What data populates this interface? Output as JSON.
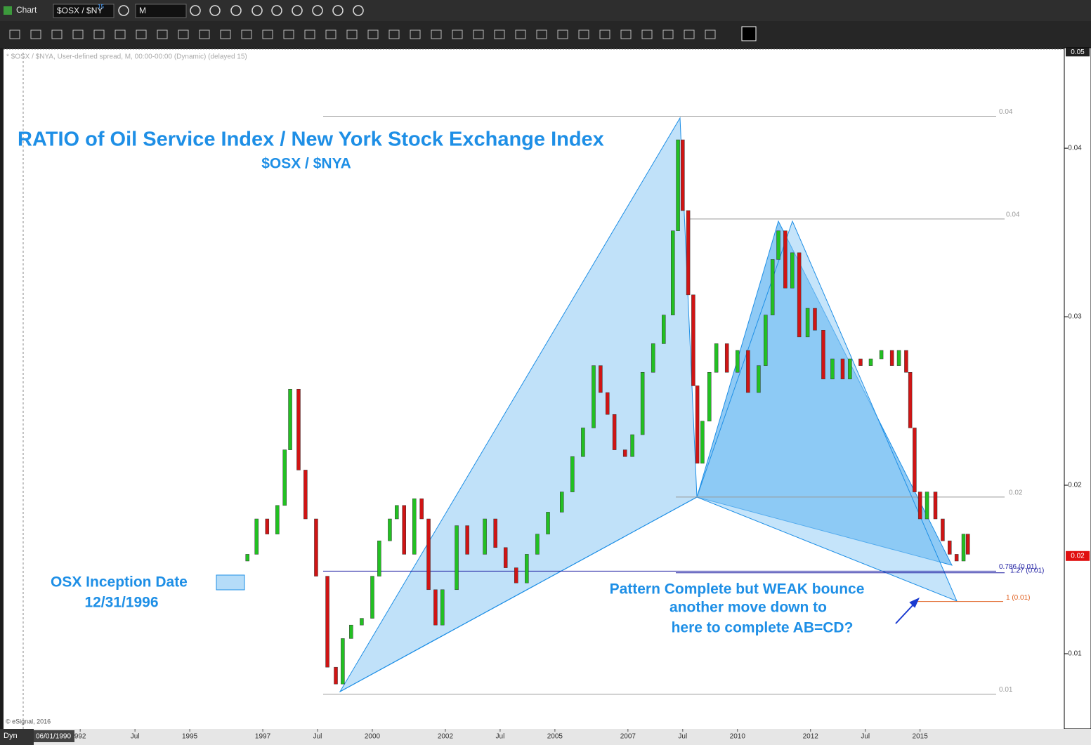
{
  "ui": {
    "window_title": "Chart",
    "symbol": "$OSX / $NY",
    "symbol_badge": "15",
    "interval": "M",
    "study_header": "* $OSX / $NYA, User-defined spread, M, 00:00-00:00 (Dynamic) (delayed 15)",
    "copyright": "© eSignal, 2016",
    "mode": "Dyn",
    "start_date": "06/01/1990"
  },
  "chart_data": {
    "type": "candlestick",
    "title": "RATIO of Oil Service Index / New York Stock Exchange Index",
    "subtitle": "$OSX / $NYA",
    "annotations": [
      "OSX Inception Date",
      "12/31/1996",
      "Pattern Complete but WEAK bounce",
      "another move down to",
      "here to complete AB=CD?"
    ],
    "x": [
      1996.58,
      1996.83,
      1997.12,
      1997.4,
      1997.6,
      1997.75,
      1997.98,
      1998.17,
      1998.46,
      1998.77,
      1999.0,
      1999.19,
      1999.42,
      1999.71,
      2000.0,
      2000.19,
      2000.48,
      2000.67,
      2000.87,
      2001.15,
      2001.35,
      2001.54,
      2001.73,
      2001.92,
      2002.31,
      2002.6,
      2003.08,
      2003.37,
      2003.65,
      2003.94,
      2004.23,
      2004.52,
      2004.81,
      2005.19,
      2005.48,
      2005.77,
      2006.06,
      2006.25,
      2006.44,
      2006.63,
      2006.92,
      2007.12,
      2007.4,
      2007.69,
      2007.98,
      2008.23,
      2008.37,
      2008.5,
      2008.65,
      2008.79,
      2008.9,
      2009.04,
      2009.23,
      2009.42,
      2009.71,
      2010.0,
      2010.29,
      2010.58,
      2010.77,
      2010.96,
      2011.12,
      2011.31,
      2011.5,
      2011.69,
      2011.92,
      2012.12,
      2012.35,
      2012.6,
      2012.88,
      2013.08,
      2013.37,
      2013.65,
      2013.94,
      2014.23,
      2014.42,
      2014.62,
      2014.73,
      2014.85,
      2015.0,
      2015.19,
      2015.42,
      2015.62,
      2015.81,
      2016.0,
      2016.19,
      2016.31
    ],
    "open": [
      0.0155,
      0.0159,
      0.018,
      0.0171,
      0.0188,
      0.0221,
      0.0257,
      0.0209,
      0.018,
      0.0146,
      0.0092,
      0.0082,
      0.0109,
      0.0117,
      0.0121,
      0.0146,
      0.0167,
      0.018,
      0.0188,
      0.0159,
      0.0192,
      0.018,
      0.0138,
      0.0117,
      0.0138,
      0.0176,
      0.0159,
      0.018,
      0.0163,
      0.0151,
      0.0142,
      0.0159,
      0.0171,
      0.0184,
      0.0196,
      0.0217,
      0.0234,
      0.0271,
      0.0255,
      0.0242,
      0.0221,
      0.0217,
      0.023,
      0.0267,
      0.0284,
      0.0301,
      0.0351,
      0.0405,
      0.0363,
      0.0313,
      0.0259,
      0.0213,
      0.0238,
      0.0267,
      0.0284,
      0.0267,
      0.028,
      0.0255,
      0.0271,
      0.0301,
      0.0334,
      0.0351,
      0.0317,
      0.0338,
      0.0288,
      0.0305,
      0.0292,
      0.0263,
      0.0275,
      0.0263,
      0.0275,
      0.0271,
      0.0275,
      0.028,
      0.0271,
      0.028,
      0.0267,
      0.0234,
      0.0196,
      0.018,
      0.0196,
      0.018,
      0.0167,
      0.0159,
      0.0155,
      0.0171
    ],
    "close": [
      0.0159,
      0.018,
      0.0171,
      0.0188,
      0.0221,
      0.0257,
      0.0209,
      0.018,
      0.0146,
      0.0092,
      0.0082,
      0.0109,
      0.0117,
      0.0121,
      0.0146,
      0.0167,
      0.018,
      0.0188,
      0.0159,
      0.0192,
      0.018,
      0.0138,
      0.0117,
      0.0138,
      0.0176,
      0.0159,
      0.018,
      0.0163,
      0.0151,
      0.0142,
      0.0159,
      0.0171,
      0.0184,
      0.0196,
      0.0217,
      0.0234,
      0.0271,
      0.0255,
      0.0242,
      0.0221,
      0.0217,
      0.023,
      0.0267,
      0.0284,
      0.0301,
      0.0351,
      0.0405,
      0.0363,
      0.0313,
      0.0259,
      0.0213,
      0.0238,
      0.0267,
      0.0284,
      0.0267,
      0.028,
      0.0255,
      0.0271,
      0.0301,
      0.0334,
      0.0351,
      0.0317,
      0.0338,
      0.0288,
      0.0305,
      0.0292,
      0.0263,
      0.0275,
      0.0263,
      0.0275,
      0.0271,
      0.0275,
      0.028,
      0.0271,
      0.028,
      0.0267,
      0.0234,
      0.0196,
      0.018,
      0.0196,
      0.018,
      0.0167,
      0.0159,
      0.0155,
      0.0171,
      0.0159
    ],
    "up_color": "#22c022",
    "down_color": "#d01414",
    "xlim": [
      1989.9,
      2018.95
    ],
    "xticks": [
      {
        "value": 1992,
        "label": "992"
      },
      {
        "value": 1993.5,
        "label": "Jul"
      },
      1995,
      1997,
      {
        "value": 1998.5,
        "label": "Jul"
      },
      2000,
      2002,
      {
        "value": 2003.5,
        "label": "Jul"
      },
      2005,
      2007,
      {
        "value": 2008.5,
        "label": "Jul"
      },
      2010,
      2012,
      {
        "value": 2013.5,
        "label": "Jul"
      },
      2015
    ],
    "ylim": [
      0.00554,
      0.04588
    ],
    "yticks": [
      0.04,
      0.03,
      0.02,
      0.01
    ],
    "y_top_label": {
      "value": 0.0457,
      "label": "0.05"
    },
    "last_price": {
      "value": 0.0158,
      "label": "0.02"
    },
    "levels": [
      {
        "value": 0.0419,
        "label": "0.04",
        "color": "#999999"
      },
      {
        "value": 0.0358,
        "label": "0.04",
        "color": "#999999"
      },
      {
        "value": 0.0193,
        "label": "0.02",
        "color": "#999999"
      },
      {
        "value": 0.0149,
        "label": "0.786 (0.01)",
        "color": "#1a1aa0"
      },
      {
        "value": 0.0148,
        "label": "1.27 (0.01)",
        "color": "#1a1aa0"
      },
      {
        "value": 0.0131,
        "label": "1 (0.01)",
        "color": "#e06020"
      },
      {
        "value": 0.0076,
        "label": "0.01",
        "color": "#999999"
      }
    ]
  }
}
